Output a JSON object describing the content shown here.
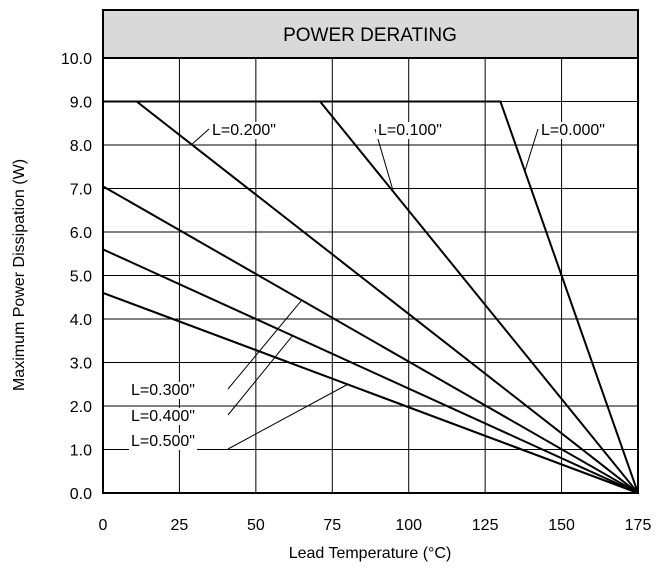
{
  "chart_data": {
    "type": "line",
    "title": "POWER DERATING",
    "xlabel": "Lead Temperature (°C)",
    "ylabel": "Maximum Power Dissipation (W)",
    "xlim": [
      0,
      175
    ],
    "ylim": [
      0,
      10
    ],
    "xticks": [
      0,
      25,
      50,
      75,
      100,
      125,
      150,
      175
    ],
    "yticks": [
      0,
      1,
      2,
      3,
      4,
      5,
      6,
      7,
      8,
      9,
      10
    ],
    "xtick_labels": [
      "0",
      "25",
      "50",
      "75",
      "100",
      "125",
      "150",
      "175"
    ],
    "ytick_labels": [
      "0.0",
      "1.0",
      "2.0",
      "3.0",
      "4.0",
      "5.0",
      "6.0",
      "7.0",
      "8.0",
      "9.0",
      "10.0"
    ],
    "grid": true,
    "colors": {
      "line": "#000000",
      "title_band": "#d9d9d9"
    },
    "series": [
      {
        "name": "L=0.000\"",
        "x": [
          0,
          130,
          175
        ],
        "y": [
          9.0,
          9.0,
          0.0
        ]
      },
      {
        "name": "L=0.100\"",
        "x": [
          0,
          71,
          175
        ],
        "y": [
          9.0,
          9.0,
          0.0
        ]
      },
      {
        "name": "L=0.200\"",
        "x": [
          0,
          11,
          175
        ],
        "y": [
          9.0,
          9.0,
          0.0
        ]
      },
      {
        "name": "L=0.300\"",
        "x": [
          0,
          175
        ],
        "y": [
          7.05,
          0.0
        ]
      },
      {
        "name": "L=0.400\"",
        "x": [
          0,
          175
        ],
        "y": [
          5.6,
          0.0
        ]
      },
      {
        "name": "L=0.500\"",
        "x": [
          0,
          175
        ],
        "y": [
          4.6,
          0.0
        ]
      }
    ]
  }
}
